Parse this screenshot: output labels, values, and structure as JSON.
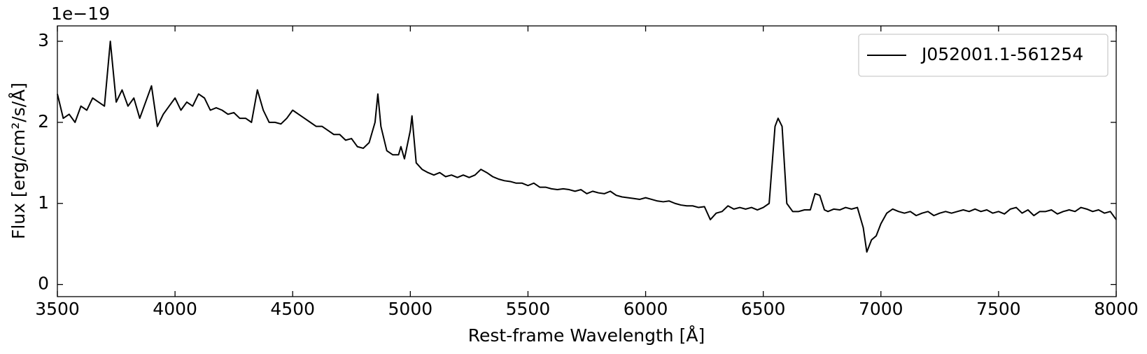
{
  "chart_data": {
    "type": "line",
    "x_label": "Rest-frame Wavelength [Å]",
    "y_label": "Flux [erg/cm²/s/Å]",
    "y_offset_label": "1e−19",
    "xlim": [
      3500,
      8000
    ],
    "xticks": [
      3500,
      4000,
      4500,
      5000,
      5500,
      6000,
      6500,
      7000,
      7500,
      8000
    ],
    "ylim": [
      -0.15,
      3.19
    ],
    "yticks": [
      0,
      1,
      2,
      3
    ],
    "legend": "upper right",
    "x": [
      3500,
      3525,
      3550,
      3575,
      3600,
      3625,
      3650,
      3675,
      3700,
      3725,
      3750,
      3775,
      3800,
      3825,
      3850,
      3875,
      3900,
      3925,
      3950,
      3975,
      4000,
      4025,
      4050,
      4075,
      4100,
      4125,
      4150,
      4175,
      4200,
      4225,
      4250,
      4275,
      4300,
      4325,
      4350,
      4375,
      4400,
      4425,
      4450,
      4475,
      4500,
      4525,
      4550,
      4575,
      4600,
      4625,
      4650,
      4675,
      4700,
      4725,
      4750,
      4775,
      4800,
      4825,
      4850,
      4862,
      4875,
      4900,
      4925,
      4950,
      4960,
      4975,
      5000,
      5007,
      5025,
      5050,
      5075,
      5100,
      5125,
      5150,
      5175,
      5200,
      5225,
      5250,
      5275,
      5300,
      5325,
      5350,
      5375,
      5400,
      5425,
      5450,
      5475,
      5500,
      5525,
      5550,
      5575,
      5600,
      5625,
      5650,
      5675,
      5700,
      5725,
      5750,
      5775,
      5800,
      5825,
      5850,
      5875,
      5900,
      5925,
      5950,
      5975,
      6000,
      6025,
      6050,
      6075,
      6100,
      6125,
      6150,
      6175,
      6200,
      6225,
      6250,
      6275,
      6300,
      6325,
      6350,
      6375,
      6400,
      6425,
      6450,
      6475,
      6500,
      6525,
      6550,
      6563,
      6580,
      6600,
      6625,
      6650,
      6675,
      6700,
      6720,
      6740,
      6760,
      6775,
      6800,
      6825,
      6850,
      6875,
      6900,
      6925,
      6940,
      6960,
      6980,
      7000,
      7025,
      7050,
      7075,
      7100,
      7125,
      7150,
      7175,
      7200,
      7225,
      7250,
      7275,
      7300,
      7325,
      7350,
      7375,
      7400,
      7425,
      7450,
      7475,
      7500,
      7525,
      7550,
      7575,
      7600,
      7625,
      7650,
      7675,
      7700,
      7725,
      7750,
      7775,
      7800,
      7825,
      7850,
      7875,
      7900,
      7925,
      7950,
      7975,
      8000
    ],
    "series": [
      {
        "name": "J052001.1-561254",
        "color": "#000000",
        "values": [
          2.35,
          2.05,
          2.1,
          2.0,
          2.2,
          2.15,
          2.3,
          2.25,
          2.2,
          3.0,
          2.25,
          2.4,
          2.2,
          2.3,
          2.05,
          2.25,
          2.45,
          1.95,
          2.1,
          2.2,
          2.3,
          2.15,
          2.25,
          2.2,
          2.35,
          2.3,
          2.15,
          2.18,
          2.15,
          2.1,
          2.12,
          2.05,
          2.05,
          2.0,
          2.4,
          2.15,
          2.0,
          2.0,
          1.98,
          2.05,
          2.15,
          2.1,
          2.05,
          2.0,
          1.95,
          1.95,
          1.9,
          1.85,
          1.85,
          1.78,
          1.8,
          1.7,
          1.68,
          1.75,
          2.0,
          2.35,
          1.95,
          1.65,
          1.6,
          1.6,
          1.7,
          1.55,
          1.9,
          2.08,
          1.5,
          1.42,
          1.38,
          1.35,
          1.38,
          1.33,
          1.35,
          1.32,
          1.35,
          1.32,
          1.35,
          1.42,
          1.38,
          1.33,
          1.3,
          1.28,
          1.27,
          1.25,
          1.25,
          1.22,
          1.25,
          1.2,
          1.2,
          1.18,
          1.17,
          1.18,
          1.17,
          1.15,
          1.17,
          1.12,
          1.15,
          1.13,
          1.12,
          1.15,
          1.1,
          1.08,
          1.07,
          1.06,
          1.05,
          1.07,
          1.05,
          1.03,
          1.02,
          1.03,
          1.0,
          0.98,
          0.97,
          0.97,
          0.95,
          0.96,
          0.8,
          0.88,
          0.9,
          0.97,
          0.93,
          0.95,
          0.93,
          0.95,
          0.92,
          0.95,
          1.0,
          1.95,
          2.05,
          1.95,
          1.0,
          0.9,
          0.9,
          0.92,
          0.92,
          1.12,
          1.1,
          0.92,
          0.9,
          0.93,
          0.92,
          0.95,
          0.93,
          0.95,
          0.7,
          0.4,
          0.55,
          0.6,
          0.75,
          0.88,
          0.93,
          0.9,
          0.88,
          0.9,
          0.85,
          0.88,
          0.9,
          0.85,
          0.88,
          0.9,
          0.88,
          0.9,
          0.92,
          0.9,
          0.93,
          0.9,
          0.92,
          0.88,
          0.9,
          0.87,
          0.93,
          0.95,
          0.88,
          0.92,
          0.85,
          0.9,
          0.9,
          0.92,
          0.87,
          0.9,
          0.92,
          0.9,
          0.95,
          0.93,
          0.9,
          0.92,
          0.88,
          0.9,
          0.8
        ]
      }
    ]
  }
}
